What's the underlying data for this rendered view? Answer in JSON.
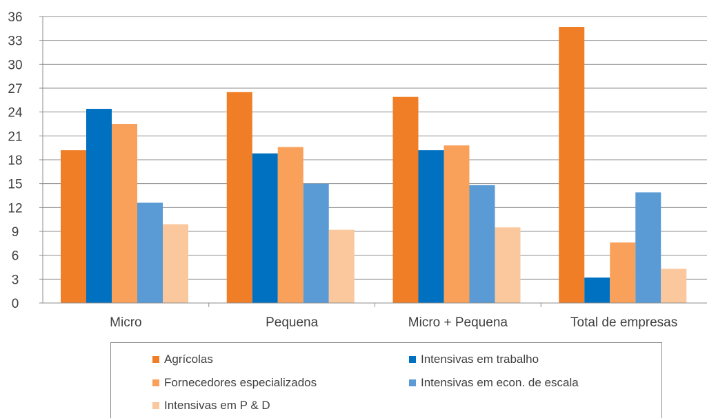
{
  "chart_data": {
    "type": "bar",
    "title": "",
    "xlabel": "",
    "ylabel": "",
    "ylim": [
      0,
      36
    ],
    "y_ticks": [
      0,
      3,
      6,
      9,
      12,
      15,
      18,
      21,
      24,
      27,
      30,
      33,
      36
    ],
    "grid": true,
    "legend_position": "bottom",
    "categories": [
      "Micro",
      "Pequena",
      "Micro + Pequena",
      "Total de empresas"
    ],
    "series": [
      {
        "name": "Agrícolas",
        "color": "#f07e26",
        "values": [
          19.2,
          26.5,
          25.9,
          34.7
        ]
      },
      {
        "name": "Intensivas em trabalho",
        "color": "#0070c0",
        "values": [
          24.4,
          18.8,
          19.2,
          3.2
        ]
      },
      {
        "name": "Fornecedores especializados",
        "color": "#f9a05b",
        "values": [
          22.5,
          19.6,
          19.8,
          7.6
        ]
      },
      {
        "name": "Intensivas em econ. de escala",
        "color": "#5b9bd5",
        "values": [
          12.6,
          15.0,
          14.8,
          13.9
        ]
      },
      {
        "name": "Intensivas em P & D",
        "color": "#fbc89d",
        "values": [
          9.9,
          9.2,
          9.5,
          4.3
        ]
      }
    ]
  }
}
